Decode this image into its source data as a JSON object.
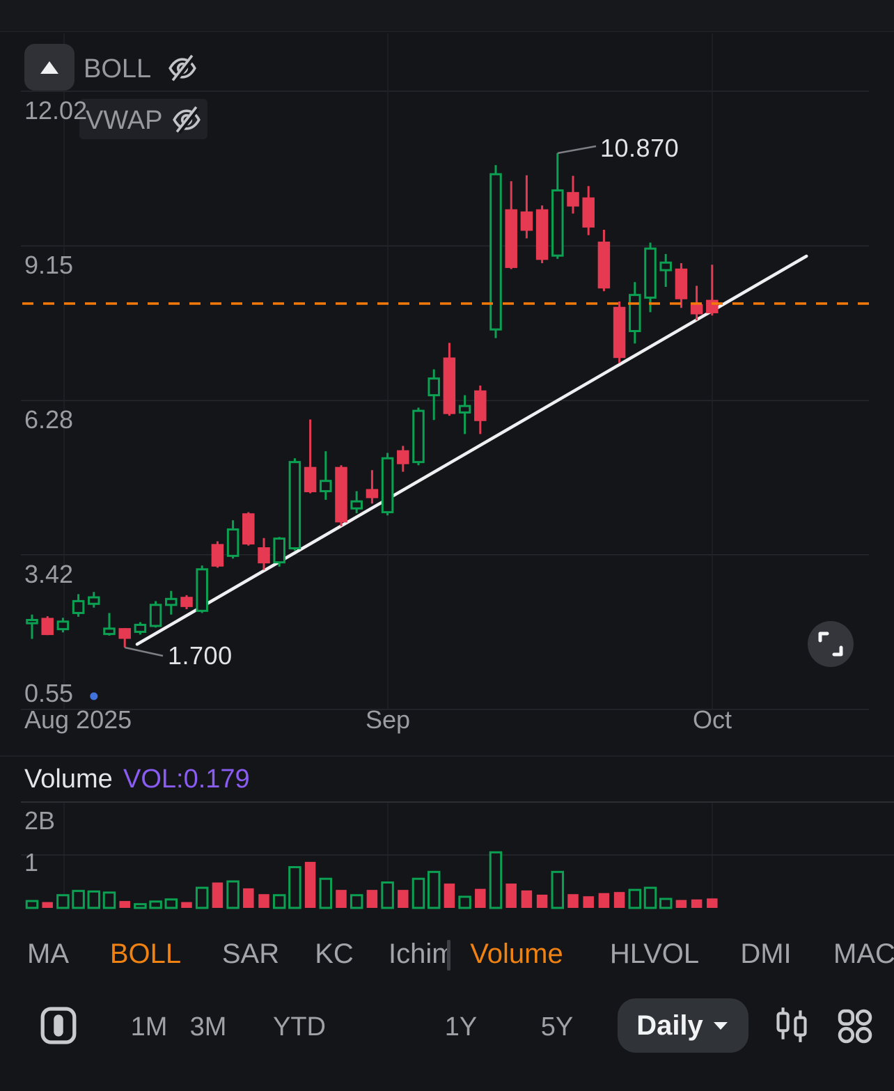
{
  "overlay_indicators": {
    "boll_label": "BOLL",
    "vwap_label": "VWAP"
  },
  "volume_header": {
    "title": "Volume",
    "value": "VOL:0.179"
  },
  "indicator_tabs": [
    {
      "label": "MA",
      "active": false
    },
    {
      "label": "BOLL",
      "active": true
    },
    {
      "label": "SAR",
      "active": false
    },
    {
      "label": "KC",
      "active": false
    },
    {
      "label": "Ichimoku",
      "active": false
    },
    {
      "label": "Volume",
      "active": true
    },
    {
      "label": "HLVOL",
      "active": false
    },
    {
      "label": "DMI",
      "active": false
    },
    {
      "label": "MACD",
      "active": false
    }
  ],
  "time_ranges": [
    "1M",
    "3M",
    "YTD",
    "1Y",
    "5Y"
  ],
  "period_selector": {
    "label": "Daily"
  },
  "colors": {
    "up": "#0ca152",
    "down": "#e63a52",
    "price_line": "#f5790a",
    "trendline": "#f0f0f2",
    "volume_value": "#8a5cf2",
    "tab_active": "#f08212",
    "event_dot": "#4272dd"
  },
  "chart_data": {
    "type": "candlestick",
    "interval": "Daily",
    "x_axis_labels": [
      "Aug 2025",
      "Sep",
      "Oct"
    ],
    "price_tick_labels": [
      "12.02",
      "9.15",
      "6.28",
      "3.42",
      "0.55"
    ],
    "price_ticks": [
      12.02,
      9.15,
      6.28,
      3.42,
      0.55
    ],
    "price_range": [
      0.55,
      12.02
    ],
    "volume_ticks": [
      "2B",
      "1"
    ],
    "current_price_line": 8.08,
    "trendline": {
      "from": {
        "index": 6.8,
        "price": 1.76
      },
      "to": {
        "index": 50.1,
        "price": 8.96
      }
    },
    "annotations": [
      {
        "text": "10.870",
        "candle": 34,
        "anchor": "high"
      },
      {
        "text": "1.700",
        "candle": 6,
        "anchor": "low"
      }
    ],
    "event_marker": {
      "index": 4
    },
    "candles_format": [
      "open",
      "high",
      "low",
      "close",
      "volume_B"
    ],
    "candles": [
      [
        2.15,
        2.31,
        1.86,
        2.21,
        0.13
      ],
      [
        2.23,
        2.28,
        1.93,
        1.95,
        0.11
      ],
      [
        2.04,
        2.25,
        1.98,
        2.18,
        0.24
      ],
      [
        2.34,
        2.69,
        2.27,
        2.56,
        0.32
      ],
      [
        2.51,
        2.73,
        2.44,
        2.63,
        0.31
      ],
      [
        1.95,
        2.34,
        1.92,
        2.05,
        0.29
      ],
      [
        2.04,
        2.06,
        1.7,
        1.88,
        0.13
      ],
      [
        1.99,
        2.17,
        1.94,
        2.12,
        0.07
      ],
      [
        2.1,
        2.56,
        2.07,
        2.49,
        0.12
      ],
      [
        2.49,
        2.75,
        2.31,
        2.6,
        0.16
      ],
      [
        2.62,
        2.67,
        2.41,
        2.47,
        0.11
      ],
      [
        2.38,
        3.22,
        2.34,
        3.15,
        0.38
      ],
      [
        3.6,
        3.67,
        3.18,
        3.22,
        0.48
      ],
      [
        3.4,
        4.06,
        3.35,
        3.89,
        0.5
      ],
      [
        4.17,
        4.21,
        3.59,
        3.63,
        0.37
      ],
      [
        3.54,
        3.73,
        3.14,
        3.28,
        0.26
      ],
      [
        3.28,
        3.75,
        3.2,
        3.72,
        0.24
      ],
      [
        3.54,
        5.21,
        3.5,
        5.14,
        0.77
      ],
      [
        5.03,
        5.93,
        4.56,
        4.6,
        0.87
      ],
      [
        4.6,
        5.34,
        4.44,
        4.79,
        0.55
      ],
      [
        5.03,
        5.08,
        3.95,
        4.04,
        0.34
      ],
      [
        4.28,
        4.6,
        4.19,
        4.41,
        0.24
      ],
      [
        4.62,
        4.99,
        4.37,
        4.49,
        0.34
      ],
      [
        4.21,
        5.31,
        4.15,
        5.21,
        0.48
      ],
      [
        5.34,
        5.44,
        4.96,
        5.12,
        0.34
      ],
      [
        5.14,
        6.15,
        5.08,
        6.09,
        0.55
      ],
      [
        6.38,
        6.86,
        5.92,
        6.69,
        0.68
      ],
      [
        7.06,
        7.35,
        6.0,
        6.05,
        0.46
      ],
      [
        6.06,
        6.38,
        5.66,
        6.18,
        0.21
      ],
      [
        6.45,
        6.56,
        5.66,
        5.92,
        0.36
      ],
      [
        7.6,
        10.65,
        7.44,
        10.48,
        1.05
      ],
      [
        9.81,
        10.35,
        8.72,
        8.76,
        0.46
      ],
      [
        9.77,
        10.46,
        9.29,
        9.45,
        0.33
      ],
      [
        9.81,
        9.9,
        8.83,
        8.91,
        0.25
      ],
      [
        8.97,
        10.87,
        8.91,
        10.18,
        0.68
      ],
      [
        10.13,
        10.45,
        9.75,
        9.9,
        0.26
      ],
      [
        10.03,
        10.26,
        9.35,
        9.51,
        0.22
      ],
      [
        9.21,
        9.45,
        8.31,
        8.38,
        0.28
      ],
      [
        8.0,
        8.12,
        6.98,
        7.09,
        0.3
      ],
      [
        7.57,
        8.48,
        7.34,
        8.24,
        0.34
      ],
      [
        8.19,
        9.21,
        7.92,
        9.1,
        0.38
      ],
      [
        8.7,
        9.0,
        8.39,
        8.84,
        0.17
      ],
      [
        8.71,
        8.83,
        8.0,
        8.18,
        0.15
      ],
      [
        8.05,
        8.41,
        7.77,
        7.9,
        0.16
      ],
      [
        8.13,
        8.8,
        7.86,
        7.92,
        0.179
      ]
    ]
  }
}
